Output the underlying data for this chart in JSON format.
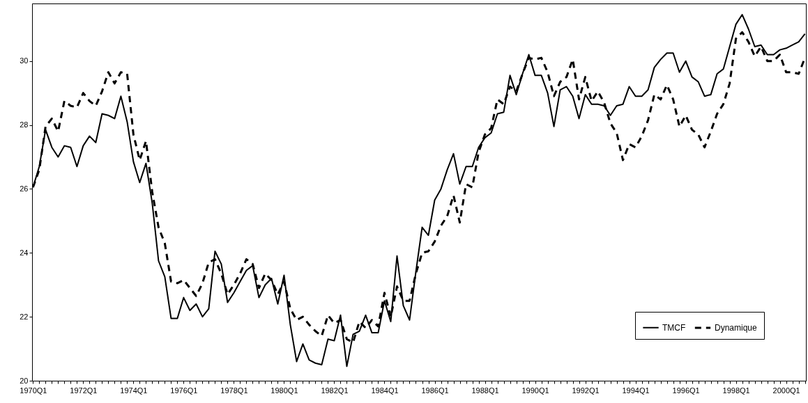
{
  "chart_data": {
    "type": "line",
    "categories": [
      "1970Q1",
      null,
      null,
      null,
      null,
      null,
      null,
      null,
      "1972Q1",
      null,
      null,
      null,
      null,
      null,
      null,
      null,
      "1974Q1",
      null,
      null,
      null,
      null,
      null,
      null,
      null,
      "1976Q1",
      null,
      null,
      null,
      null,
      null,
      null,
      null,
      "1978Q1",
      null,
      null,
      null,
      null,
      null,
      null,
      null,
      "1980Q1",
      null,
      null,
      null,
      null,
      null,
      null,
      null,
      "1982Q1",
      null,
      null,
      null,
      null,
      null,
      null,
      null,
      "1984Q1",
      null,
      null,
      null,
      null,
      null,
      null,
      null,
      "1986Q1",
      null,
      null,
      null,
      null,
      null,
      null,
      null,
      "1988Q1",
      null,
      null,
      null,
      null,
      null,
      null,
      null,
      "1990Q1",
      null,
      null,
      null,
      null,
      null,
      null,
      null,
      "1992Q1",
      null,
      null,
      null,
      null,
      null,
      null,
      null,
      "1994Q1",
      null,
      null,
      null,
      null,
      null,
      null,
      null,
      "1996Q1",
      null,
      null,
      null,
      null,
      null,
      null,
      null,
      "1998Q1",
      null,
      null,
      null,
      null,
      null,
      null,
      null,
      "2000Q1",
      null,
      null,
      null
    ],
    "series": [
      {
        "name": "TMCF",
        "color": "#000000",
        "line_style": "solid",
        "values": [
          26.05,
          26.7,
          27.85,
          27.3,
          27.0,
          27.35,
          27.3,
          26.7,
          27.35,
          27.65,
          27.45,
          28.35,
          28.3,
          28.2,
          28.9,
          28.1,
          26.85,
          26.2,
          26.8,
          25.55,
          23.75,
          23.25,
          21.95,
          21.95,
          22.6,
          22.2,
          22.4,
          22.0,
          22.25,
          24.05,
          23.65,
          22.45,
          22.75,
          23.1,
          23.45,
          23.6,
          22.6,
          23.0,
          23.2,
          22.4,
          23.3,
          21.75,
          20.6,
          21.15,
          20.65,
          20.55,
          20.5,
          21.3,
          21.25,
          22.05,
          20.45,
          21.45,
          21.55,
          22.05,
          21.5,
          21.5,
          22.5,
          21.85,
          23.9,
          22.35,
          21.9,
          23.4,
          24.8,
          24.55,
          25.65,
          26.0,
          26.6,
          27.1,
          26.15,
          26.7,
          26.7,
          27.3,
          27.6,
          27.75,
          28.35,
          28.4,
          29.55,
          28.95,
          29.6,
          30.2,
          29.55,
          29.55,
          29.0,
          27.95,
          29.1,
          29.2,
          28.9,
          28.2,
          28.95,
          28.65,
          28.65,
          28.6,
          28.3,
          28.6,
          28.65,
          29.2,
          28.9,
          28.9,
          29.1,
          29.8,
          30.05,
          30.25,
          30.25,
          29.65,
          30.0,
          29.5,
          29.35,
          28.9,
          28.95,
          29.6,
          29.75,
          30.45,
          31.15,
          31.45,
          31.0,
          30.45,
          30.5,
          30.2,
          30.2,
          30.35,
          30.4,
          30.5,
          30.6,
          30.85
        ]
      },
      {
        "name": "Dynamique",
        "color": "#000000",
        "line_style": "dashed",
        "values": [
          26.05,
          26.6,
          27.95,
          28.2,
          27.8,
          28.75,
          28.6,
          28.55,
          29.0,
          28.75,
          28.6,
          29.05,
          29.65,
          29.3,
          29.65,
          29.6,
          27.7,
          26.9,
          27.5,
          25.9,
          24.8,
          24.3,
          23.1,
          23.05,
          23.15,
          22.9,
          22.65,
          23.05,
          23.7,
          23.8,
          23.35,
          22.7,
          23.0,
          23.35,
          23.8,
          23.65,
          22.9,
          23.35,
          23.15,
          22.7,
          23.1,
          22.25,
          21.9,
          22.0,
          21.75,
          21.55,
          21.4,
          22.05,
          21.8,
          21.9,
          21.3,
          21.2,
          21.85,
          21.65,
          21.9,
          21.7,
          22.75,
          22.0,
          22.95,
          22.5,
          22.5,
          23.35,
          24.0,
          24.05,
          24.35,
          24.85,
          25.15,
          25.8,
          24.95,
          26.15,
          26.05,
          27.15,
          27.7,
          27.9,
          28.8,
          28.65,
          29.2,
          29.05,
          29.6,
          30.1,
          30.05,
          30.1,
          29.65,
          28.9,
          29.35,
          29.5,
          30.05,
          28.8,
          29.5,
          28.75,
          29.05,
          28.7,
          28.05,
          27.75,
          26.9,
          27.4,
          27.3,
          27.65,
          28.15,
          28.95,
          28.8,
          29.25,
          28.8,
          27.95,
          28.3,
          27.85,
          27.7,
          27.3,
          27.8,
          28.35,
          28.65,
          29.3,
          30.7,
          30.9,
          30.6,
          30.15,
          30.45,
          30.0,
          30.0,
          30.2,
          29.65,
          29.65,
          29.6,
          30.1
        ]
      }
    ],
    "ylim": [
      20,
      31.8
    ],
    "yticks": [
      20,
      22,
      24,
      26,
      28,
      30
    ],
    "legend": "bottom right"
  }
}
